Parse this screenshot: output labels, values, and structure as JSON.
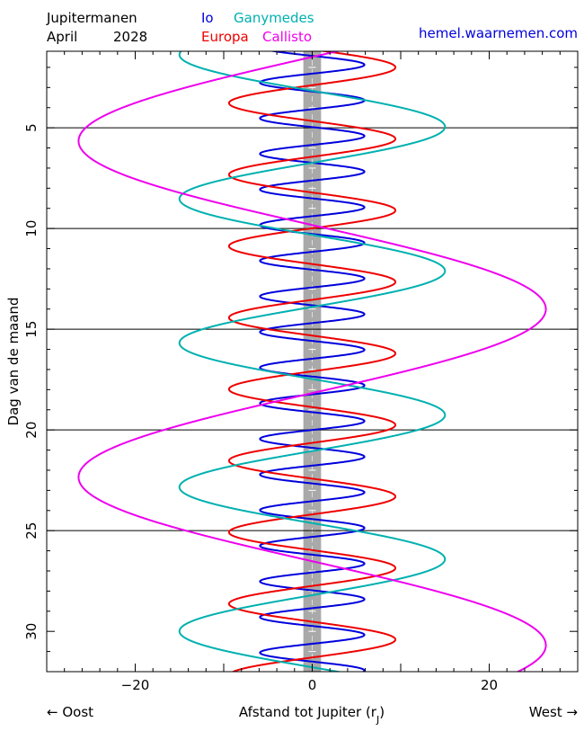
{
  "header": {
    "title": "Jupitermanen",
    "month": "April",
    "year": "2028",
    "site": "hemel.waarnemen.com"
  },
  "legend": [
    {
      "name": "Io",
      "color": "#0000dd"
    },
    {
      "name": "Ganymedes",
      "color": "#00b0b0"
    },
    {
      "name": "Europa",
      "color": "#ee0000"
    },
    {
      "name": "Callisto",
      "color": "#ee00ee"
    }
  ],
  "axes": {
    "xlabel_main": "Afstand tot Jupiter (r",
    "xlabel_sub": "J",
    "xlabel_close": ")",
    "east_label": "← Oost",
    "west_label": "West →",
    "ylabel": "Dag van de maand"
  },
  "chart_data": {
    "type": "line",
    "x_unit": "Jupiter radii",
    "xlim": [
      -30,
      30
    ],
    "ylim": [
      32,
      1.2
    ],
    "x_ticks": [
      -20,
      0,
      20
    ],
    "y_ticks": [
      5,
      10,
      15,
      20,
      25,
      30
    ],
    "day_lines": [
      5,
      10,
      15,
      20,
      25
    ],
    "jupiter_band_halfwidth": 1,
    "series": [
      {
        "name": "Io",
        "color": "#0000dd",
        "amplitude": 5.9,
        "period_days": 1.769,
        "ref_day": 1.87,
        "ref_x": 5.9
      },
      {
        "name": "Europa",
        "color": "#ee0000",
        "amplitude": 9.4,
        "period_days": 3.551,
        "ref_day": 5.55,
        "ref_x": 9.4
      },
      {
        "name": "Ganymedes",
        "color": "#00b0b0",
        "amplitude": 15.0,
        "period_days": 7.155,
        "ref_day": 4.95,
        "ref_x": 15.0
      },
      {
        "name": "Callisto",
        "color": "#ee00ee",
        "amplitude": 26.4,
        "period_days": 16.689,
        "ref_day": 14.0,
        "ref_x": 26.4
      }
    ]
  }
}
